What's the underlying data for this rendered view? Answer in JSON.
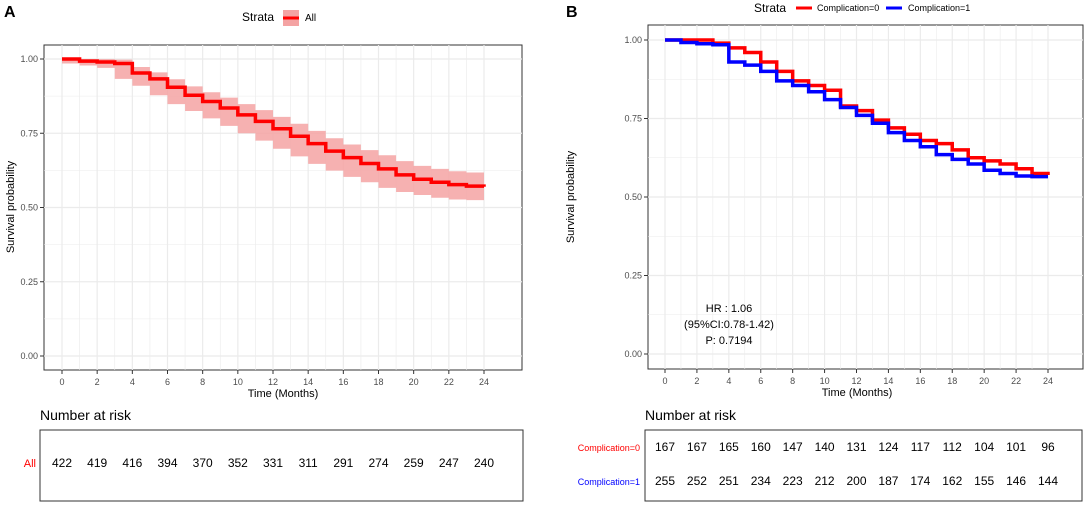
{
  "chart_data": [
    {
      "panel": "A",
      "type": "line",
      "subtype": "kaplan-meier",
      "legend_title": "Strata",
      "legend_position": "top",
      "xlabel": "Time (Months)",
      "ylabel": "Survival probability",
      "xlim": [
        0,
        24
      ],
      "ylim": [
        0,
        1
      ],
      "xticks": [
        0,
        2,
        4,
        6,
        8,
        10,
        12,
        14,
        16,
        18,
        20,
        22,
        24
      ],
      "yticks": [
        "0.00",
        "0.25",
        "0.50",
        "0.75",
        "1.00"
      ],
      "grid": true,
      "series": [
        {
          "name": "All",
          "color": "#ff0000",
          "ci_color": "#f4a3a3",
          "x": [
            0,
            1,
            2,
            3,
            4,
            5,
            6,
            7,
            8,
            9,
            10,
            11,
            12,
            13,
            14,
            15,
            16,
            17,
            18,
            19,
            20,
            21,
            22,
            23,
            24
          ],
          "y": [
            1.0,
            0.993,
            0.99,
            0.985,
            0.953,
            0.933,
            0.905,
            0.878,
            0.857,
            0.835,
            0.812,
            0.79,
            0.765,
            0.74,
            0.715,
            0.69,
            0.668,
            0.648,
            0.63,
            0.61,
            0.595,
            0.585,
            0.577,
            0.572,
            0.57
          ],
          "ci_lower": [
            1.0,
            0.985,
            0.978,
            0.97,
            0.933,
            0.91,
            0.878,
            0.848,
            0.825,
            0.8,
            0.775,
            0.75,
            0.725,
            0.698,
            0.672,
            0.647,
            0.624,
            0.603,
            0.585,
            0.566,
            0.552,
            0.542,
            0.533,
            0.527,
            0.525
          ],
          "ci_upper": [
            1.0,
            1.0,
            1.0,
            0.998,
            0.973,
            0.955,
            0.932,
            0.908,
            0.888,
            0.87,
            0.848,
            0.828,
            0.805,
            0.782,
            0.758,
            0.733,
            0.712,
            0.693,
            0.676,
            0.656,
            0.64,
            0.63,
            0.622,
            0.618,
            0.615
          ]
        }
      ],
      "risk_table": {
        "title": "Number at risk",
        "rows": [
          {
            "label": "All",
            "color": "#ff0000",
            "values": [
              "422",
              "419",
              "416",
              "394",
              "370",
              "352",
              "331",
              "311",
              "291",
              "274",
              "259",
              "247",
              "240"
            ]
          }
        ]
      }
    },
    {
      "panel": "B",
      "type": "line",
      "subtype": "kaplan-meier",
      "legend_title": "Strata",
      "legend_position": "top",
      "xlabel": "Time (Months)",
      "ylabel": "Survival probability",
      "xlim": [
        0,
        24
      ],
      "ylim": [
        0,
        1
      ],
      "xticks": [
        0,
        2,
        4,
        6,
        8,
        10,
        12,
        14,
        16,
        18,
        20,
        22,
        24
      ],
      "yticks": [
        "0.00",
        "0.25",
        "0.50",
        "0.75",
        "1.00"
      ],
      "grid": true,
      "series": [
        {
          "name": "Complication=0",
          "color": "#ff0000",
          "x": [
            0,
            1,
            2,
            3,
            4,
            5,
            6,
            7,
            8,
            9,
            10,
            11,
            12,
            13,
            14,
            15,
            16,
            17,
            18,
            19,
            20,
            21,
            22,
            23,
            24
          ],
          "y": [
            1.0,
            1.0,
            1.0,
            0.99,
            0.975,
            0.96,
            0.93,
            0.9,
            0.87,
            0.855,
            0.84,
            0.79,
            0.775,
            0.745,
            0.72,
            0.7,
            0.68,
            0.67,
            0.65,
            0.625,
            0.615,
            0.605,
            0.59,
            0.575,
            0.57
          ]
        },
        {
          "name": "Complication=1",
          "color": "#0000ff",
          "x": [
            0,
            1,
            2,
            3,
            4,
            5,
            6,
            7,
            8,
            9,
            10,
            11,
            12,
            13,
            14,
            15,
            16,
            17,
            18,
            19,
            20,
            21,
            22,
            23,
            24
          ],
          "y": [
            1.0,
            0.992,
            0.988,
            0.985,
            0.93,
            0.92,
            0.9,
            0.87,
            0.855,
            0.835,
            0.81,
            0.785,
            0.76,
            0.735,
            0.705,
            0.68,
            0.66,
            0.635,
            0.62,
            0.605,
            0.585,
            0.575,
            0.567,
            0.565,
            0.565
          ]
        }
      ],
      "annotation": [
        "HR : 1.06",
        "(95%CI:0.78-1.42)",
        "P: 0.7194"
      ],
      "risk_table": {
        "title": "Number at risk",
        "rows": [
          {
            "label": "Complication=0",
            "color": "#ff0000",
            "values": [
              "167",
              "167",
              "165",
              "160",
              "147",
              "140",
              "131",
              "124",
              "117",
              "112",
              "104",
              "101",
              "96"
            ]
          },
          {
            "label": "Complication=1",
            "color": "#0000ff",
            "values": [
              "255",
              "252",
              "251",
              "234",
              "223",
              "212",
              "200",
              "187",
              "174",
              "162",
              "155",
              "146",
              "144"
            ]
          }
        ]
      }
    }
  ]
}
